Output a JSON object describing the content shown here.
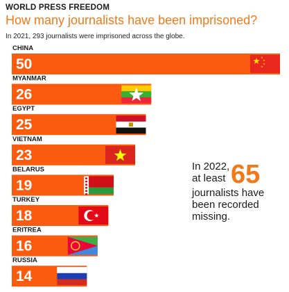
{
  "header": {
    "kicker": "WORLD PRESS FREEDOM",
    "title": "How many journalists have been imprisoned?",
    "subtitle": "In 2021, 293 journalists were imprisoned across the globe."
  },
  "note": {
    "line1": "In 2022,",
    "line2": "at least",
    "big_number": "65",
    "line3": "journalists have",
    "line4": "been recorded",
    "line5": "missing."
  },
  "colors": {
    "accent": "#f07a1a",
    "bar": "#fa5b0f",
    "text": "#1a1a1a"
  },
  "chart_data": {
    "type": "bar",
    "orientation": "horizontal",
    "categories": [
      "CHINA",
      "MYANMAR",
      "EGYPT",
      "VIETNAM",
      "BELARUS",
      "TURKEY",
      "ERITREA",
      "RUSSIA"
    ],
    "values": [
      50,
      26,
      25,
      23,
      19,
      18,
      16,
      14
    ],
    "flags": [
      "china-flag",
      "myanmar-flag",
      "egypt-flag",
      "vietnam-flag",
      "belarus-flag",
      "turkey-flag",
      "eritrea-flag",
      "russia-flag"
    ],
    "xlim": [
      0,
      50
    ],
    "grid": false,
    "legend": "none"
  }
}
